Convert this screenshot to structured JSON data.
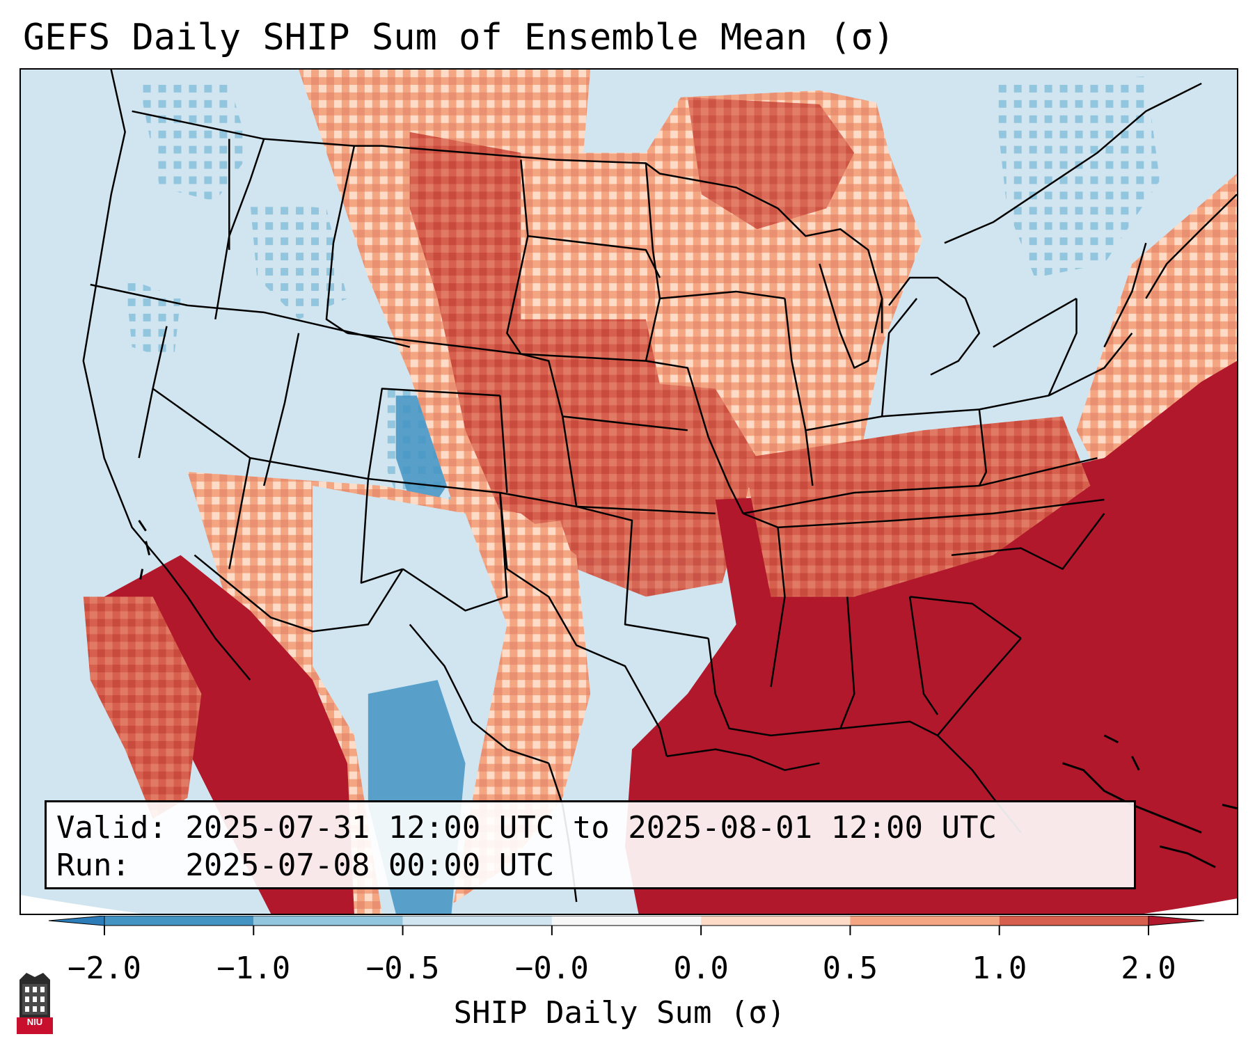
{
  "title": "GEFS Daily SHIP Sum of Ensemble Mean (σ)",
  "info": {
    "valid_line": "Valid: 2025-07-31 12:00 UTC to 2025-08-01 12:00 UTC",
    "run_line": "Run:   2025-07-08 00:00 UTC"
  },
  "colorbar": {
    "label": "SHIP Daily Sum (σ)",
    "ticks": [
      "−2.0",
      "−1.0",
      "−0.5",
      "−0.0",
      "0.0",
      "0.5",
      "1.0",
      "2.0"
    ],
    "colors": [
      "#2c7cba",
      "#4393c3",
      "#92c5de",
      "#d1e5f0",
      "#f7f7f7",
      "#fddbc7",
      "#f4a582",
      "#d6604d",
      "#b2182b"
    ]
  },
  "logo": {
    "text": "NIU",
    "color": "#c8102e"
  },
  "map": {
    "region": "Continental United States",
    "colors": {
      "ocean": "#d1e5f0",
      "ocean_south": "#b2182b",
      "boundary": "#000000"
    }
  }
}
